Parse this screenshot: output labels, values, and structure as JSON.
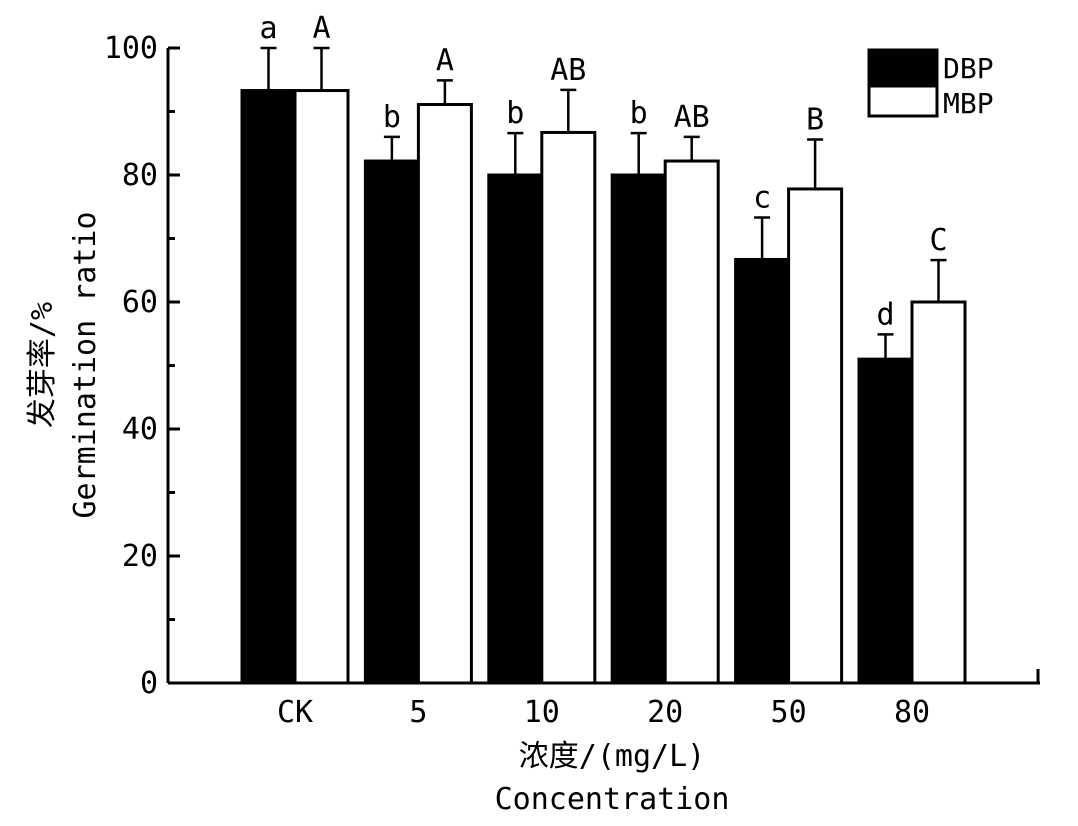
{
  "chart_data": {
    "type": "bar",
    "categories": [
      "CK",
      "5",
      "10",
      "20",
      "50",
      "80"
    ],
    "series": [
      {
        "name": "DBP",
        "values": [
          93.3,
          82.2,
          80.0,
          80.0,
          66.7,
          51.0
        ],
        "errors": [
          6.7,
          3.8,
          6.6,
          6.6,
          6.6,
          3.9
        ],
        "sig_letters": [
          "a",
          "b",
          "b",
          "b",
          "c",
          "d"
        ],
        "fill": "#000000"
      },
      {
        "name": "MBP",
        "values": [
          93.3,
          91.1,
          86.7,
          82.2,
          77.8,
          60.0
        ],
        "errors": [
          6.7,
          3.8,
          6.7,
          3.8,
          7.8,
          6.6
        ],
        "sig_letters": [
          "A",
          "A",
          "AB",
          "AB",
          "B",
          "C"
        ],
        "fill": "#ffffff"
      }
    ],
    "ylim": [
      0,
      100
    ],
    "yticks": [
      "0",
      "20",
      "40",
      "60",
      "80",
      "100"
    ],
    "ylabel_zh": "发芽率/%",
    "ylabel_en": "Germination ratio",
    "xlabel_zh": "浓度/(mg/L)",
    "xlabel_en": "Concentration",
    "legend_position": "top-right",
    "grid": false
  }
}
